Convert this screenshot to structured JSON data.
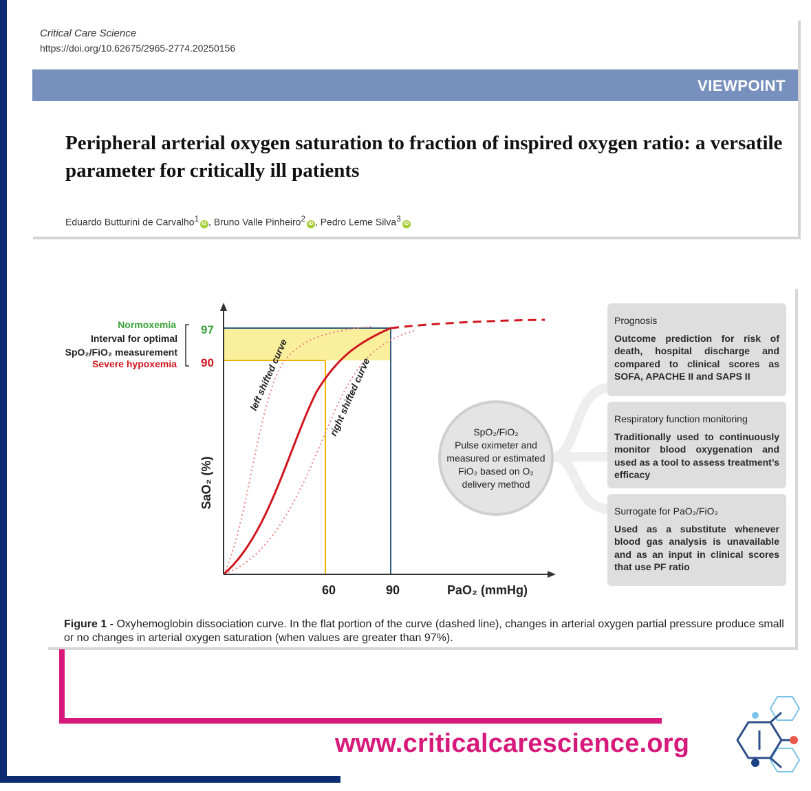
{
  "journal": {
    "name": "Critical Care Science",
    "doi": "https://doi.org/10.62675/2965-2774.20250156"
  },
  "section_label": "VIEWPOINT",
  "title": "Peripheral arterial oxygen saturation to fraction of inspired oxygen ratio: a versatile parameter for critically ill patients",
  "authors": {
    "a1": "Eduardo Butturini de Carvalho",
    "a1_sup": "1",
    "a2": "Bruno Valle Pinheiro",
    "a2_sup": "2",
    "a3": "Pedro Leme Silva",
    "a3_sup": "3",
    "sep": ", ",
    "orcid_mark": "iD"
  },
  "figure": {
    "bracket_labels": {
      "normoxemia": "Normoxemia",
      "interval_line1": "Interval for optimal",
      "interval_line2": "SpO₂/FiO₂ measurement",
      "severe": "Severe hypoxemia"
    },
    "center_circle": {
      "line1": "SpO₂/FiO₂",
      "line2": "Pulse oximeter and",
      "line3": "measured or estimated",
      "line4": "FiO₂ based on O₂",
      "line5": "delivery method"
    },
    "boxes": [
      {
        "title": "Prognosis",
        "body": "Outcome prediction for risk of death, hospital discharge and compared to clinical scores as SOFA, APACHE II and SAPS II"
      },
      {
        "title": "Respiratory function monitoring",
        "body": "Traditionally used to continuously monitor blood oxygenation and used as a tool to assess treatment’s efficacy"
      },
      {
        "title": "Surrogate for PaO₂/FiO₂",
        "body": "Used as a substitute whenever blood gas analysis is unavailable and as an input in clinical scores that use PF ratio"
      }
    ],
    "caption_label": "Figure 1 -",
    "caption_text": "Oxyhemoglobin dissociation curve. In the flat portion of the curve (dashed line), changes in arterial oxygen partial pressure produce small or no changes in arterial oxygen saturation (when values are greater than 97%)."
  },
  "chart_data": {
    "type": "line",
    "xlabel": "PaO₂ (mmHg)",
    "ylabel": "SaO₂ (%)",
    "x_ticks": [
      "60",
      "90"
    ],
    "y_ticks": [
      "97",
      "90"
    ],
    "reference_lines": [
      {
        "axis": "x",
        "value": 60,
        "color": "#f0b400"
      },
      {
        "axis": "x",
        "value": 90,
        "color": "#2e5a7c"
      },
      {
        "axis": "y",
        "value": 90,
        "color": "#f0b400"
      },
      {
        "axis": "y",
        "value": 97,
        "color": "#2e5a7c"
      }
    ],
    "series": [
      {
        "name": "",
        "style": "solid",
        "color": "#d0161f"
      },
      {
        "name": "",
        "style": "dashed",
        "color": "#d0161f"
      },
      {
        "name": "left shifted curve",
        "style": "dotted",
        "color": "#f08080"
      },
      {
        "name": "right shifted curve",
        "style": "dotted",
        "color": "#f08080"
      }
    ],
    "shaded_band": {
      "y_from": 90,
      "y_to": 97,
      "color": "#f9ef9c"
    },
    "colors": {
      "normoxemia": "#3aa03a",
      "severe": "#d0161f",
      "neutral": "#222222"
    }
  },
  "footer": {
    "website": "www.criticalcarescience.org"
  },
  "colors": {
    "navy": "#0d2d73",
    "band": "#7790bd",
    "pink": "#d6197a"
  }
}
